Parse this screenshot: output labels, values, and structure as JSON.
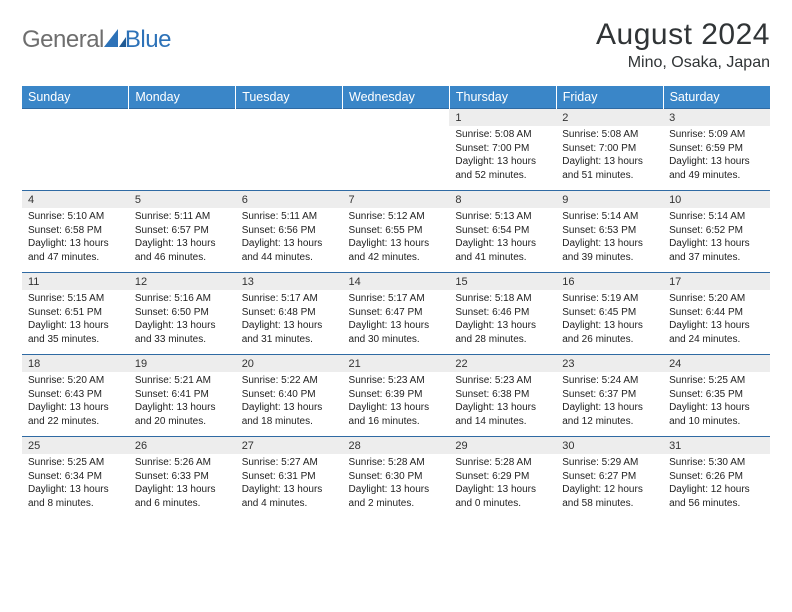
{
  "logo": {
    "general": "General",
    "blue": "Blue"
  },
  "title": "August 2024",
  "location": "Mino, Osaka, Japan",
  "colors": {
    "header_bg": "#3a86c8",
    "header_text": "#ffffff",
    "row_border": "#2f6aa3",
    "daynum_bg": "#ededed",
    "text": "#222222",
    "title_color": "#303436",
    "logo_general": "#6e6e6e",
    "logo_blue": "#2d72b8"
  },
  "weekdays": [
    "Sunday",
    "Monday",
    "Tuesday",
    "Wednesday",
    "Thursday",
    "Friday",
    "Saturday"
  ],
  "start_weekday_index": 4,
  "days": [
    {
      "n": 1,
      "sunrise": "5:08 AM",
      "sunset": "7:00 PM",
      "daylight": "13 hours and 52 minutes."
    },
    {
      "n": 2,
      "sunrise": "5:08 AM",
      "sunset": "7:00 PM",
      "daylight": "13 hours and 51 minutes."
    },
    {
      "n": 3,
      "sunrise": "5:09 AM",
      "sunset": "6:59 PM",
      "daylight": "13 hours and 49 minutes."
    },
    {
      "n": 4,
      "sunrise": "5:10 AM",
      "sunset": "6:58 PM",
      "daylight": "13 hours and 47 minutes."
    },
    {
      "n": 5,
      "sunrise": "5:11 AM",
      "sunset": "6:57 PM",
      "daylight": "13 hours and 46 minutes."
    },
    {
      "n": 6,
      "sunrise": "5:11 AM",
      "sunset": "6:56 PM",
      "daylight": "13 hours and 44 minutes."
    },
    {
      "n": 7,
      "sunrise": "5:12 AM",
      "sunset": "6:55 PM",
      "daylight": "13 hours and 42 minutes."
    },
    {
      "n": 8,
      "sunrise": "5:13 AM",
      "sunset": "6:54 PM",
      "daylight": "13 hours and 41 minutes."
    },
    {
      "n": 9,
      "sunrise": "5:14 AM",
      "sunset": "6:53 PM",
      "daylight": "13 hours and 39 minutes."
    },
    {
      "n": 10,
      "sunrise": "5:14 AM",
      "sunset": "6:52 PM",
      "daylight": "13 hours and 37 minutes."
    },
    {
      "n": 11,
      "sunrise": "5:15 AM",
      "sunset": "6:51 PM",
      "daylight": "13 hours and 35 minutes."
    },
    {
      "n": 12,
      "sunrise": "5:16 AM",
      "sunset": "6:50 PM",
      "daylight": "13 hours and 33 minutes."
    },
    {
      "n": 13,
      "sunrise": "5:17 AM",
      "sunset": "6:48 PM",
      "daylight": "13 hours and 31 minutes."
    },
    {
      "n": 14,
      "sunrise": "5:17 AM",
      "sunset": "6:47 PM",
      "daylight": "13 hours and 30 minutes."
    },
    {
      "n": 15,
      "sunrise": "5:18 AM",
      "sunset": "6:46 PM",
      "daylight": "13 hours and 28 minutes."
    },
    {
      "n": 16,
      "sunrise": "5:19 AM",
      "sunset": "6:45 PM",
      "daylight": "13 hours and 26 minutes."
    },
    {
      "n": 17,
      "sunrise": "5:20 AM",
      "sunset": "6:44 PM",
      "daylight": "13 hours and 24 minutes."
    },
    {
      "n": 18,
      "sunrise": "5:20 AM",
      "sunset": "6:43 PM",
      "daylight": "13 hours and 22 minutes."
    },
    {
      "n": 19,
      "sunrise": "5:21 AM",
      "sunset": "6:41 PM",
      "daylight": "13 hours and 20 minutes."
    },
    {
      "n": 20,
      "sunrise": "5:22 AM",
      "sunset": "6:40 PM",
      "daylight": "13 hours and 18 minutes."
    },
    {
      "n": 21,
      "sunrise": "5:23 AM",
      "sunset": "6:39 PM",
      "daylight": "13 hours and 16 minutes."
    },
    {
      "n": 22,
      "sunrise": "5:23 AM",
      "sunset": "6:38 PM",
      "daylight": "13 hours and 14 minutes."
    },
    {
      "n": 23,
      "sunrise": "5:24 AM",
      "sunset": "6:37 PM",
      "daylight": "13 hours and 12 minutes."
    },
    {
      "n": 24,
      "sunrise": "5:25 AM",
      "sunset": "6:35 PM",
      "daylight": "13 hours and 10 minutes."
    },
    {
      "n": 25,
      "sunrise": "5:25 AM",
      "sunset": "6:34 PM",
      "daylight": "13 hours and 8 minutes."
    },
    {
      "n": 26,
      "sunrise": "5:26 AM",
      "sunset": "6:33 PM",
      "daylight": "13 hours and 6 minutes."
    },
    {
      "n": 27,
      "sunrise": "5:27 AM",
      "sunset": "6:31 PM",
      "daylight": "13 hours and 4 minutes."
    },
    {
      "n": 28,
      "sunrise": "5:28 AM",
      "sunset": "6:30 PM",
      "daylight": "13 hours and 2 minutes."
    },
    {
      "n": 29,
      "sunrise": "5:28 AM",
      "sunset": "6:29 PM",
      "daylight": "13 hours and 0 minutes."
    },
    {
      "n": 30,
      "sunrise": "5:29 AM",
      "sunset": "6:27 PM",
      "daylight": "12 hours and 58 minutes."
    },
    {
      "n": 31,
      "sunrise": "5:30 AM",
      "sunset": "6:26 PM",
      "daylight": "12 hours and 56 minutes."
    }
  ],
  "labels": {
    "sunrise": "Sunrise:",
    "sunset": "Sunset:",
    "daylight": "Daylight:"
  }
}
